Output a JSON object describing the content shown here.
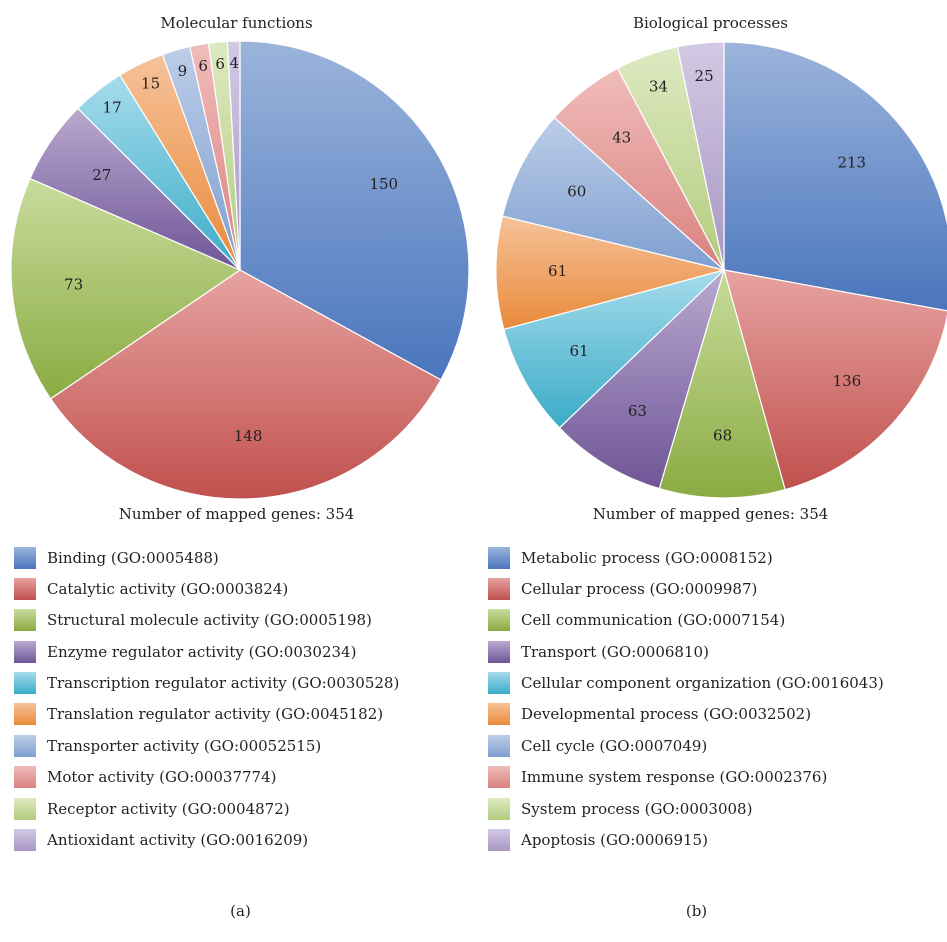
{
  "charts": [
    {
      "panel_label": "(a)",
      "note": "Number of mapped genes: 354"
    },
    {
      "panel_label": "(b)",
      "note": "Number of mapped genes: 354"
    }
  ],
  "chart_data": [
    {
      "type": "pie",
      "title": "Molecular functions",
      "total": 354,
      "slices": [
        {
          "name": "Binding (GO:0005488)",
          "value": 150,
          "label": "150",
          "color": "#4a75bd",
          "light": "#9bb4db"
        },
        {
          "name": "Catalytic activity (GO:0003824)",
          "value": 148,
          "label": "148",
          "color": "#c0504d",
          "light": "#e7a3a1"
        },
        {
          "name": "Structural molecule activity (GO:0005198)",
          "value": 73,
          "label": "73",
          "color": "#8aab42",
          "light": "#c8dc9c"
        },
        {
          "name": "Enzyme regulator activity (GO:0030234)",
          "value": 27,
          "label": "27",
          "color": "#6f5597",
          "light": "#b9a9cf"
        },
        {
          "name": "Transcription regulator activity (GO:0030528)",
          "value": 17,
          "label": "17",
          "color": "#3aabc7",
          "light": "#a6dcec"
        },
        {
          "name": "Translation regulator activity (GO:0045182)",
          "value": 15,
          "label": "15",
          "color": "#e98a3a",
          "light": "#f6c29a"
        },
        {
          "name": "Transporter activity (GO:00052515)",
          "value": 9,
          "label": "9",
          "color": "#7e9fd0",
          "light": "#bccde8"
        },
        {
          "name": "Motor activity (GO:00037774)",
          "value": 6,
          "label": "6",
          "color": "#d9827f",
          "light": "#f0bcba"
        },
        {
          "name": "Receptor activity (GO:0004872)",
          "value": 6,
          "label": "6",
          "color": "#b3cc7e",
          "light": "#dde9c1"
        },
        {
          "name": "Antioxidant activity (GO:0016209)",
          "value": 4,
          "label": "4",
          "color": "#a896c5",
          "light": "#d3c9e3"
        }
      ]
    },
    {
      "type": "pie",
      "title": "Biological processes",
      "total": 354,
      "slices": [
        {
          "name": "Metabolic process (GO:0008152)",
          "value": 213,
          "label": "213",
          "color": "#4a75bd",
          "light": "#9bb4db"
        },
        {
          "name": "Cellular process (GO:0009987)",
          "value": 136,
          "label": "136",
          "color": "#c0504d",
          "light": "#e7a3a1"
        },
        {
          "name": "Cell communication (GO:0007154)",
          "value": 68,
          "label": "68",
          "color": "#8aab42",
          "light": "#c8dc9c"
        },
        {
          "name": "Transport (GO:0006810)",
          "value": 63,
          "label": "63",
          "color": "#6f5597",
          "light": "#b9a9cf"
        },
        {
          "name": "Cellular component organization (GO:0016043)",
          "value": 61,
          "label": "61",
          "color": "#3aabc7",
          "light": "#a6dcec"
        },
        {
          "name": "Developmental process (GO:0032502)",
          "value": 61,
          "label": "61",
          "color": "#e98a3a",
          "light": "#f6c29a"
        },
        {
          "name": "Cell cycle (GO:0007049)",
          "value": 60,
          "label": "60",
          "color": "#7e9fd0",
          "light": "#bccde8"
        },
        {
          "name": "Immune system response (GO:0002376)",
          "value": 43,
          "label": "43",
          "color": "#d9827f",
          "light": "#f0bcba"
        },
        {
          "name": "System process (GO:0003008)",
          "value": 34,
          "label": "34",
          "color": "#b3cc7e",
          "light": "#dde9c1"
        },
        {
          "name": "Apoptosis (GO:0006915)",
          "value": 25,
          "label": "25",
          "color": "#a896c5",
          "light": "#d3c9e3"
        }
      ]
    }
  ]
}
